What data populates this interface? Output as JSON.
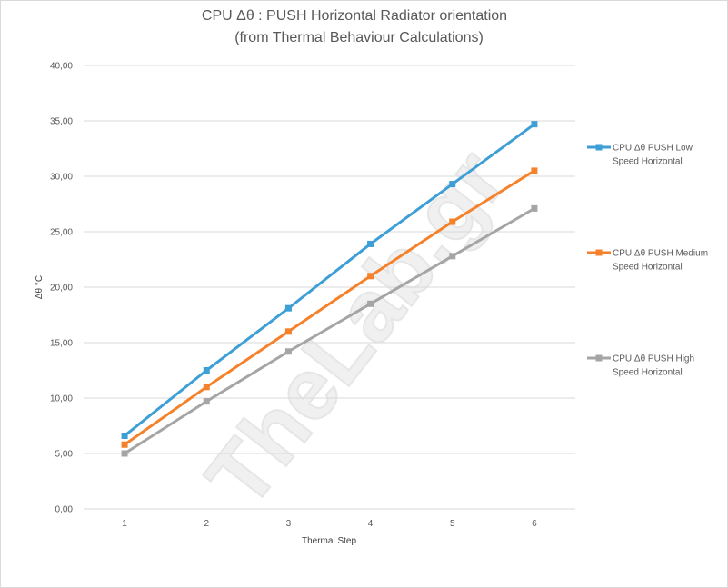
{
  "chart_data": {
    "type": "line",
    "title": [
      "CPU   Δθ : PUSH Horizontal  Radiator orientation",
      "(from Thermal Behaviour Calculations)"
    ],
    "xlabel": "Thermal Step",
    "ylabel": "Δθ °C",
    "x": [
      1,
      2,
      3,
      4,
      5,
      6
    ],
    "x_tick_labels": [
      "1",
      "2",
      "3",
      "4",
      "5",
      "6"
    ],
    "ylim": [
      0,
      40
    ],
    "y_ticks": [
      0,
      5,
      10,
      15,
      20,
      25,
      30,
      35,
      40
    ],
    "y_tick_labels": [
      "0,00",
      "5,00",
      "10,00",
      "15,00",
      "20,00",
      "25,00",
      "30,00",
      "35,00",
      "40,00"
    ],
    "grid": true,
    "legend_position": "right",
    "series": [
      {
        "name": "CPU Δθ PUSH Low Speed Horizontal",
        "name_lines": [
          "CPU Δθ PUSH Low",
          "Speed Horizontal"
        ],
        "color": "#3d9fd6",
        "values": [
          6.6,
          12.5,
          18.1,
          23.9,
          29.3,
          34.7
        ]
      },
      {
        "name": "CPU Δθ PUSH Medium Speed Horizontal",
        "name_lines": [
          "CPU Δθ PUSH Medium",
          "Speed Horizontal"
        ],
        "color": "#f5822a",
        "values": [
          5.8,
          11.0,
          16.0,
          21.0,
          25.9,
          30.5
        ]
      },
      {
        "name": "CPU Δθ PUSH High Speed Horizontal",
        "name_lines": [
          "CPU Δθ PUSH High",
          "Speed Horizontal"
        ],
        "color": "#a5a5a5",
        "values": [
          5.0,
          9.7,
          14.2,
          18.5,
          22.8,
          27.1
        ]
      }
    ]
  },
  "watermark": {
    "text": "TheLab.gr",
    "color_light": "#f0f0f0",
    "color_accent": "#fde9b8"
  }
}
